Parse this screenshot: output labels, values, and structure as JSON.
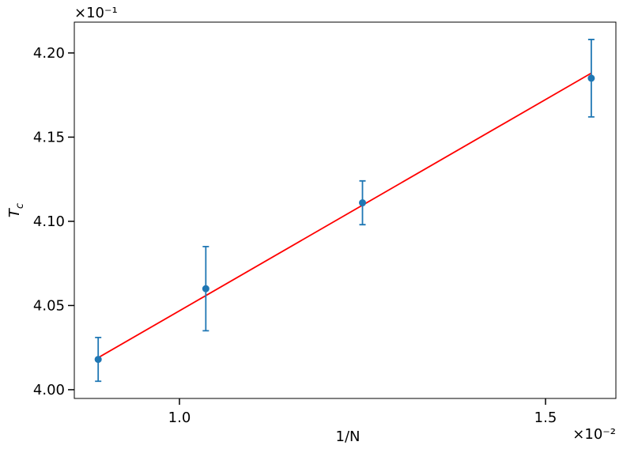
{
  "chart_data": {
    "type": "errorbar",
    "xlabel": "1/N",
    "ylabel": "T",
    "ylabel_subscript": "c",
    "x_offset_label": "×10⁻²",
    "y_offset_label": "×10⁻¹",
    "x": [
      0.889,
      1.036,
      1.25,
      1.5625
    ],
    "series": [
      {
        "color": "#1f77b4",
        "values": [
          4.018,
          4.06,
          4.111,
          4.185
        ],
        "errors": [
          0.013,
          0.025,
          0.013,
          0.023
        ]
      }
    ],
    "fit": {
      "color": "#ff0000",
      "x": [
        0.889,
        1.5625
      ],
      "values": [
        4.019,
        4.188
      ]
    },
    "xlim": [
      0.8564,
      1.5961
    ],
    "ylim": [
      3.9948,
      4.2183
    ],
    "xticks": [
      {
        "value": 1.0,
        "label": "1.0"
      },
      1.5
    ],
    "yticks": [
      {
        "value": 4.0,
        "label": "4.00"
      },
      4.05,
      {
        "value": 4.1,
        "label": "4.10"
      },
      4.15,
      {
        "value": 4.2,
        "label": "4.20"
      }
    ]
  }
}
